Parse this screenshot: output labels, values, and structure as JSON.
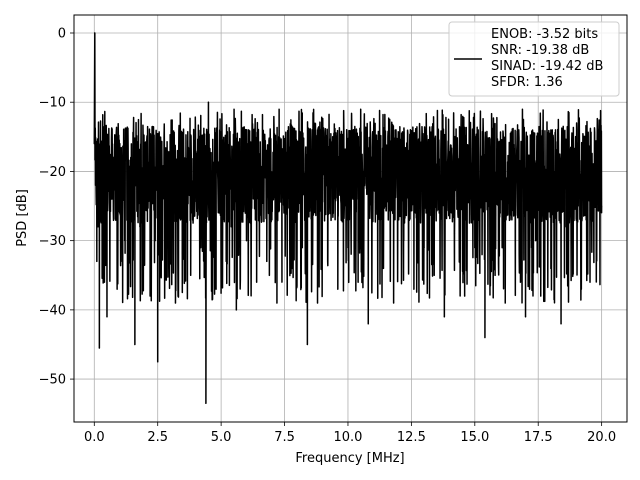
{
  "chart_data": {
    "type": "line",
    "title": "",
    "xlabel": "Frequency [MHz]",
    "ylabel": "PSD [dB]",
    "xlim": [
      -0.8,
      21.0
    ],
    "ylim": [
      -56.2,
      2.6
    ],
    "xticks": [
      0.0,
      2.5,
      5.0,
      7.5,
      10.0,
      12.5,
      15.0,
      17.5,
      20.0
    ],
    "xtick_labels": [
      "0.0",
      "2.5",
      "5.0",
      "7.5",
      "10.0",
      "12.5",
      "15.0",
      "17.5",
      "20.0"
    ],
    "yticks": [
      0,
      -10,
      -20,
      -30,
      -40,
      -50
    ],
    "ytick_labels": [
      "0",
      "−10",
      "−20",
      "−30",
      "−40",
      "−50"
    ],
    "grid": true,
    "legend_position": "top-right",
    "series": [
      {
        "name": "ENOB: -3.52 bits\nSNR: -19.38 dB\nSINAD: -19.42 dB\nSFDR: 1.36",
        "legend_lines": [
          "ENOB: -3.52 bits",
          "SNR: -19.38 dB",
          "SINAD: -19.42 dB",
          "SFDR: 1.36"
        ],
        "color": "#000000",
        "description_stats": {
          "noise_floor_mean_db": -21,
          "range_db": [
            -53.5,
            0
          ]
        },
        "x": [
          0.0,
          0.02,
          0.05,
          0.1,
          0.15,
          0.2,
          0.3,
          0.4,
          0.5,
          0.6,
          0.75,
          0.9,
          1.0,
          1.2,
          1.4,
          1.6,
          1.8,
          2.0,
          2.2,
          2.4,
          2.5,
          2.6,
          2.8,
          3.0,
          3.2,
          3.4,
          3.6,
          3.8,
          4.0,
          4.2,
          4.4,
          4.5,
          4.6,
          4.8,
          5.0,
          5.2,
          5.4,
          5.6,
          5.8,
          6.0,
          6.2,
          6.4,
          6.6,
          6.8,
          7.0,
          7.2,
          7.4,
          7.6,
          7.8,
          8.0,
          8.2,
          8.4,
          8.5,
          8.6,
          8.8,
          9.0,
          9.2,
          9.4,
          9.6,
          9.8,
          10.0,
          10.2,
          10.4,
          10.6,
          10.8,
          11.0,
          11.2,
          11.4,
          11.6,
          11.8,
          12.0,
          12.2,
          12.4,
          12.6,
          12.8,
          13.0,
          13.2,
          13.4,
          13.6,
          13.8,
          14.0,
          14.2,
          14.4,
          14.6,
          14.8,
          15.0,
          15.2,
          15.4,
          15.6,
          15.8,
          16.0,
          16.2,
          16.4,
          16.6,
          16.8,
          17.0,
          17.2,
          17.4,
          17.6,
          17.8,
          18.0,
          18.2,
          18.4,
          18.6,
          18.8,
          19.0,
          19.2,
          19.4,
          19.6,
          19.8,
          20.0
        ],
        "y": [
          -16,
          0,
          -22,
          -33,
          -28,
          -45.5,
          -24,
          -36,
          -41,
          -19,
          -25,
          -37,
          -26,
          -30,
          -20,
          -45,
          -28,
          -22,
          -38,
          -30,
          -47.5,
          -24,
          -31,
          -21,
          -39,
          -27,
          -23,
          -35,
          -20,
          -31,
          -53.5,
          -10,
          -26,
          -37,
          -22,
          -33,
          -28,
          -40,
          -19,
          -30,
          -24,
          -36,
          -21,
          -33,
          -27,
          -39,
          -19,
          -29,
          -34,
          -24,
          -31,
          -45,
          -22,
          -27,
          -39,
          -21,
          -33,
          -26,
          -37,
          -20,
          -31,
          -24,
          -36,
          -28,
          -42,
          -19,
          -26,
          -34,
          -22,
          -39,
          -27,
          -30,
          -20,
          -37,
          -24,
          -31,
          -22,
          -35,
          -26,
          -41,
          -21,
          -29,
          -33,
          -38,
          -24,
          -31,
          -27,
          -44,
          -20,
          -35,
          -26,
          -39,
          -22,
          -29,
          -36,
          -41,
          -24,
          -30,
          -38,
          -21,
          -34,
          -26,
          -42,
          -28,
          -31,
          -23,
          -37,
          -27,
          -20,
          -30,
          -25
        ]
      }
    ]
  }
}
